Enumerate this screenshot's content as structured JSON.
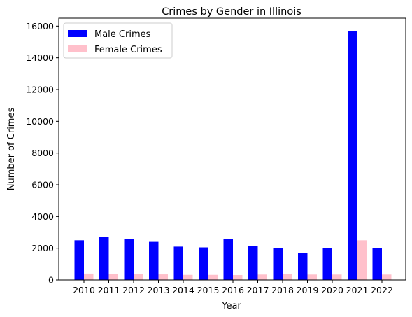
{
  "chart_data": {
    "type": "bar",
    "title": "Crimes by Gender in Illinois",
    "xlabel": "Year",
    "ylabel": "Number of Crimes",
    "categories": [
      "2010",
      "2011",
      "2012",
      "2013",
      "2014",
      "2015",
      "2016",
      "2017",
      "2018",
      "2019",
      "2020",
      "2021",
      "2022"
    ],
    "series": [
      {
        "name": "Male Crimes",
        "color": "#0000ff",
        "values": [
          2500,
          2700,
          2600,
          2400,
          2100,
          2050,
          2600,
          2150,
          2000,
          1700,
          2000,
          15700,
          2000
        ]
      },
      {
        "name": "Female Crimes",
        "color": "#ffc0cb",
        "values": [
          400,
          380,
          360,
          350,
          320,
          320,
          310,
          340,
          390,
          340,
          340,
          2500,
          340
        ]
      }
    ],
    "ylim": [
      0,
      16500
    ],
    "yticks": [
      0,
      2000,
      4000,
      6000,
      8000,
      10000,
      12000,
      14000,
      16000
    ],
    "grid": false,
    "legend_position": "top-left"
  }
}
